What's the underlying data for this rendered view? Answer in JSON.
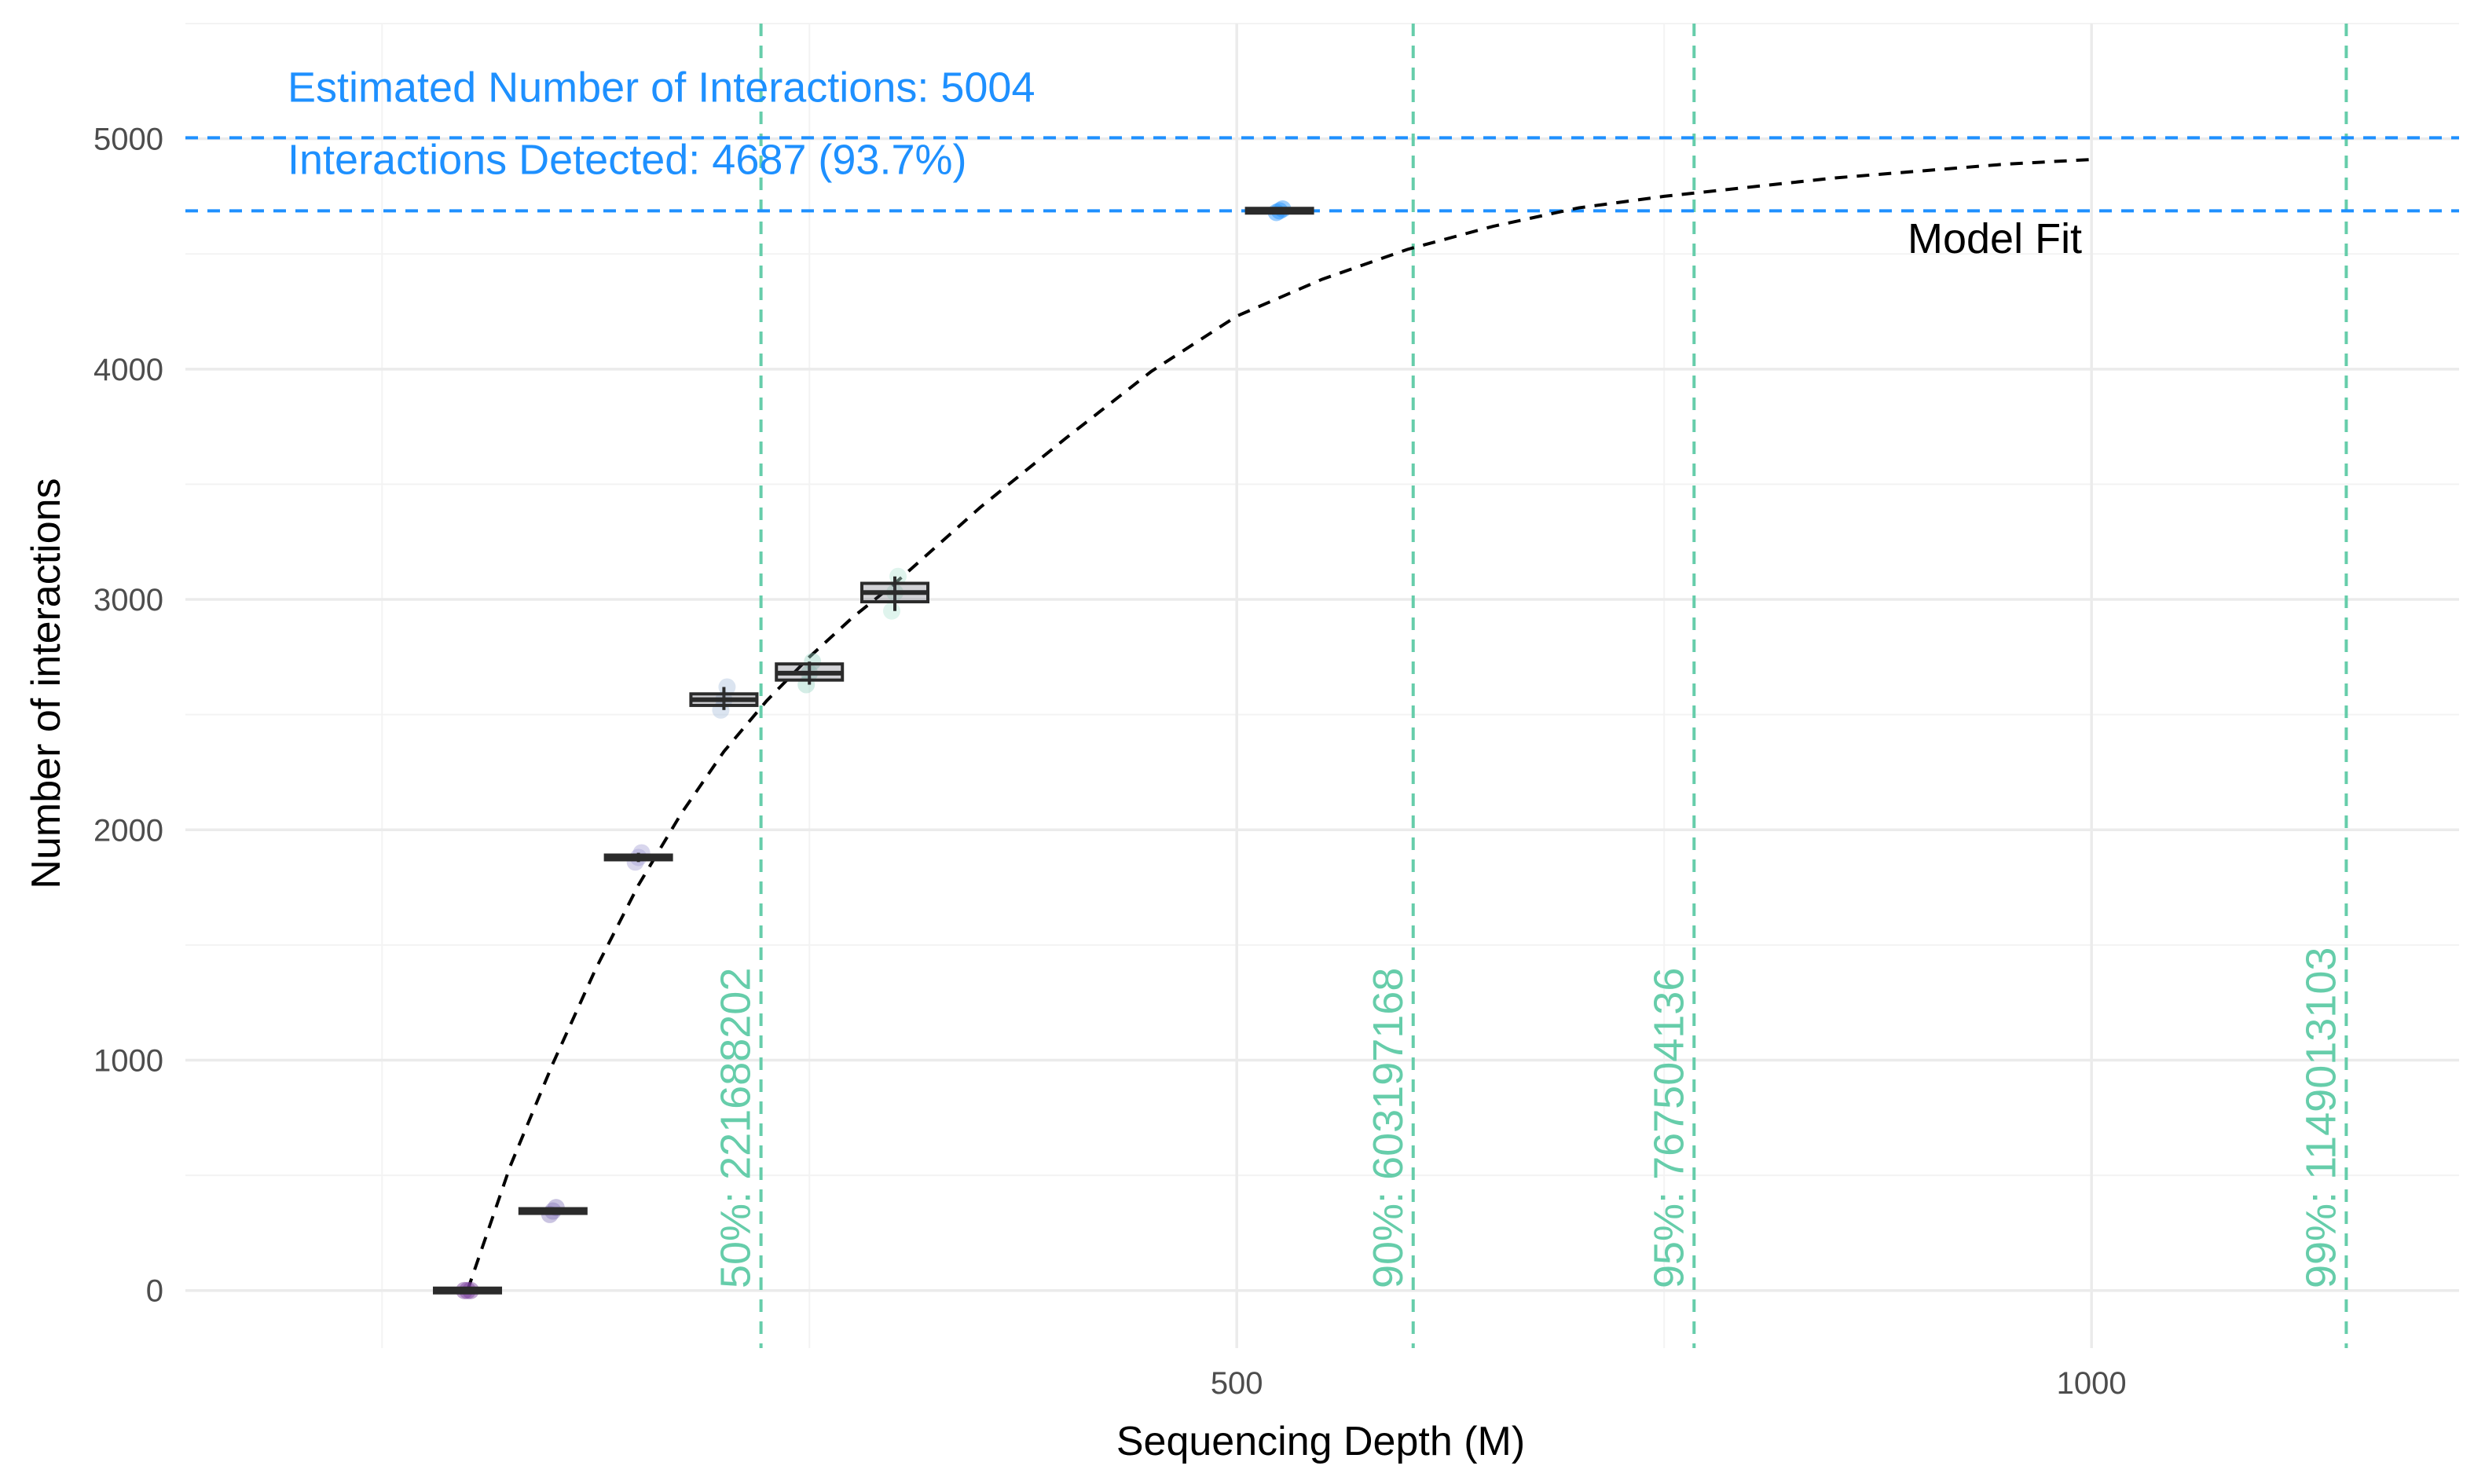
{
  "chart_data": {
    "type": "box",
    "xlabel": "Sequencing Depth (M)",
    "ylabel": "Number of interactions",
    "xlim": [
      -115,
      1215
    ],
    "ylim": [
      -250,
      5500
    ],
    "x_ticks": [
      500,
      1000
    ],
    "y_ticks": [
      0,
      1000,
      2000,
      3000,
      4000,
      5000
    ],
    "grid": true,
    "colors": {
      "blue": "#1e90ff",
      "green": "#66cdaa",
      "box_edge": "#2b2b2b",
      "box_fill": "#4a4a5a",
      "fit": "#000000"
    },
    "boxes": [
      {
        "x": 50,
        "min": 0,
        "q1": 0,
        "median": 0,
        "q3": 0,
        "max": 0,
        "point_color": "#7b3f9e"
      },
      {
        "x": 100,
        "min": 330,
        "q1": 340,
        "median": 345,
        "q3": 350,
        "max": 360,
        "point_color": "#8a7dbd"
      },
      {
        "x": 150,
        "min": 1860,
        "q1": 1870,
        "median": 1880,
        "q3": 1890,
        "max": 1900,
        "point_color": "#a9a3d6"
      },
      {
        "x": 200,
        "min": 2520,
        "q1": 2540,
        "median": 2565,
        "q3": 2590,
        "max": 2620,
        "point_color": "#b0c4de"
      },
      {
        "x": 250,
        "min": 2630,
        "q1": 2650,
        "median": 2680,
        "q3": 2720,
        "max": 2730,
        "point_color": "#9fd8c8"
      },
      {
        "x": 300,
        "min": 2950,
        "q1": 2990,
        "median": 3030,
        "q3": 3070,
        "max": 3100,
        "point_color": "#b8e6d8"
      },
      {
        "x": 525,
        "min": 4680,
        "q1": 4685,
        "median": 4687,
        "q3": 4690,
        "max": 4695,
        "point_color": "#1e90ff"
      }
    ],
    "fit_curve": {
      "x": [
        50,
        75,
        100,
        125,
        150,
        175,
        200,
        225,
        250,
        275,
        300,
        350,
        400,
        450,
        500,
        550,
        600,
        650,
        700,
        750,
        800,
        850,
        900,
        950,
        1000
      ],
      "y": [
        0,
        540,
        986,
        1396,
        1760,
        2070,
        2340,
        2560,
        2750,
        2920,
        3070,
        3400,
        3700,
        3990,
        4230,
        4390,
        4520,
        4620,
        4700,
        4750,
        4790,
        4830,
        4860,
        4890,
        4910
      ]
    },
    "hlines": [
      {
        "y": 5004,
        "label": "Estimated Number of Interactions: 5004"
      },
      {
        "y": 4687,
        "label": "Interactions Detected: 4687 (93.7%)"
      }
    ],
    "vlines": [
      {
        "x": 221.688202,
        "label": "50%: 221688202"
      },
      {
        "x": 603.197168,
        "label": "90%: 603197168"
      },
      {
        "x": 767.504136,
        "label": "95%: 767504136"
      },
      {
        "x": 1149.013103,
        "label": "99%: 1149013103"
      }
    ],
    "fit_label": "Model Fit"
  }
}
